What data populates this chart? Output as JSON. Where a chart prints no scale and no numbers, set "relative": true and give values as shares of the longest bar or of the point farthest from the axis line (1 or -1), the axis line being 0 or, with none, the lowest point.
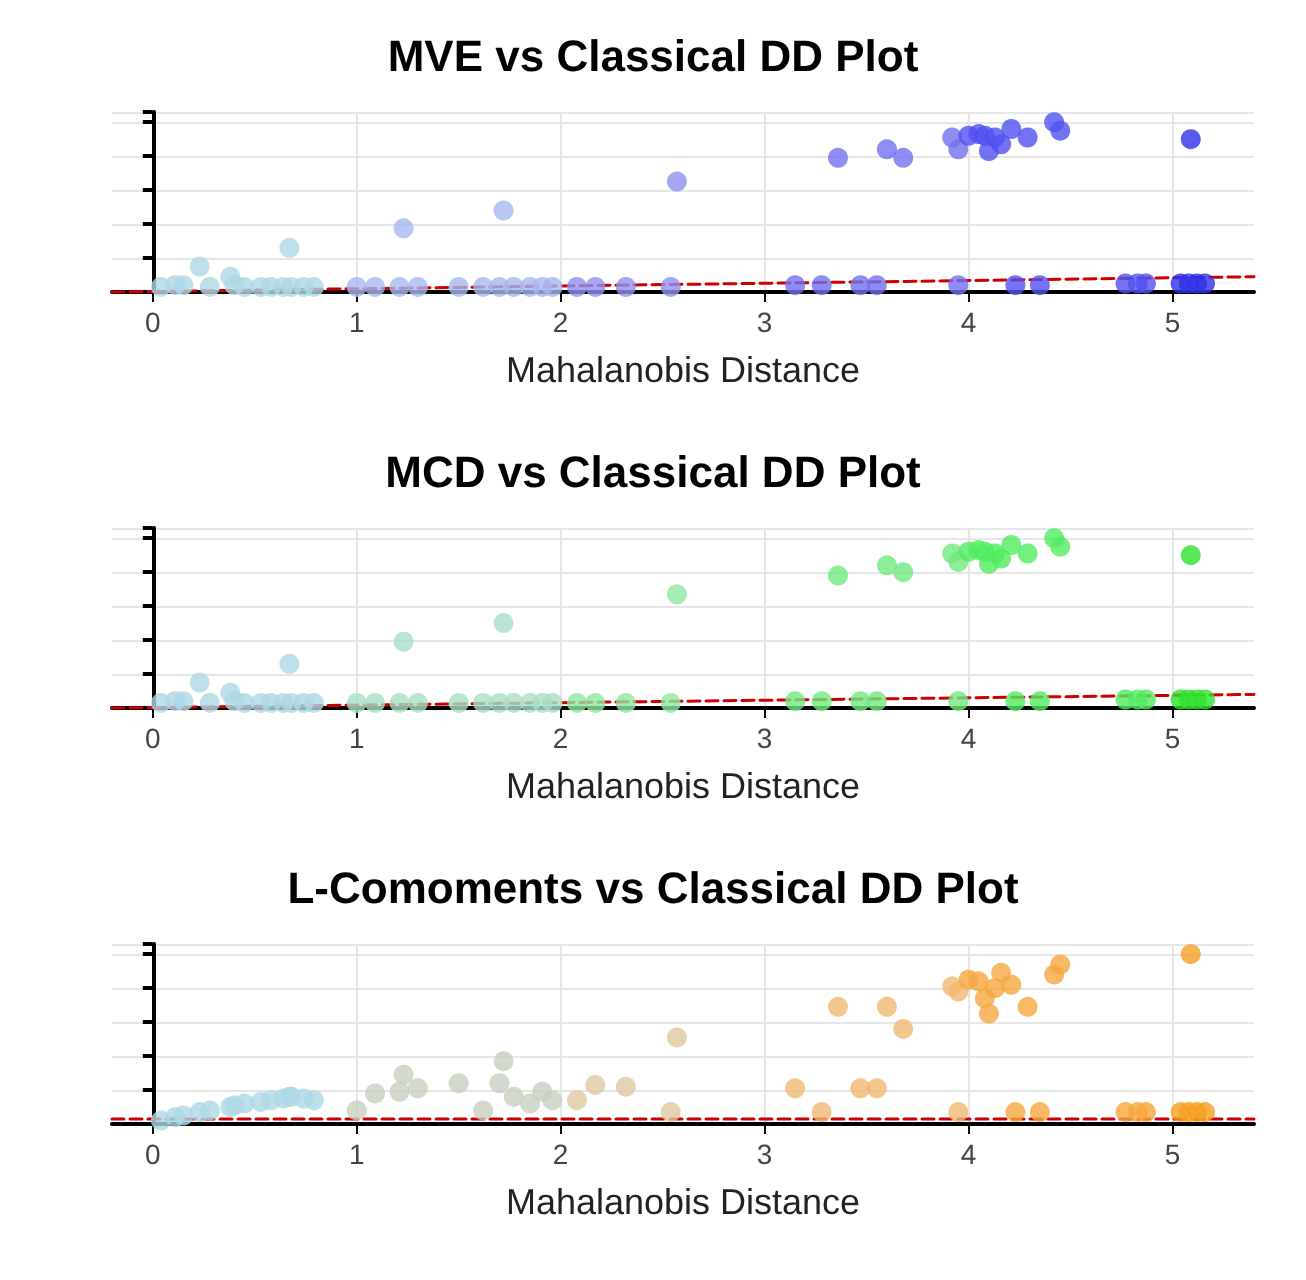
{
  "chart_data": [
    {
      "type": "scatter",
      "title": "MVE vs Classical DD Plot",
      "xlabel": "Mahalanobis Distance",
      "relative": true,
      "xlim": [
        -0.2,
        5.4
      ],
      "xticks": [
        0,
        1,
        2,
        3,
        4,
        5
      ],
      "grid": true,
      "tick_labels": "x",
      "series": [
        {
          "marker": "circle",
          "x": [
            0.04,
            0.11,
            0.15,
            0.23,
            0.28,
            0.38,
            0.4,
            0.45,
            0.53,
            0.58,
            0.64,
            0.67,
            0.68,
            0.74,
            0.79,
            1.0,
            1.09,
            1.21,
            1.23,
            1.3,
            1.5,
            1.62,
            1.7,
            1.72,
            1.77,
            1.85,
            1.91,
            1.96,
            2.08,
            2.17,
            2.32,
            2.54,
            2.57,
            3.15,
            3.28,
            3.36,
            3.47,
            3.55,
            3.6,
            3.68,
            3.92,
            3.95,
            3.95,
            4.0,
            4.05,
            4.08,
            4.1,
            4.13,
            4.16,
            4.21,
            4.23,
            4.29,
            4.35,
            4.42,
            4.45,
            4.77,
            4.83,
            4.87,
            5.04,
            5.08,
            5.09,
            5.12,
            5.16
          ],
          "values": [
            0.03,
            0.04,
            0.04,
            0.15,
            0.03,
            0.09,
            0.04,
            0.03,
            0.03,
            0.03,
            0.03,
            0.26,
            0.03,
            0.03,
            0.03,
            0.03,
            0.03,
            0.03,
            0.375,
            0.03,
            0.03,
            0.03,
            0.03,
            0.48,
            0.03,
            0.03,
            0.03,
            0.03,
            0.03,
            0.03,
            0.03,
            0.03,
            0.65,
            0.04,
            0.04,
            0.79,
            0.04,
            0.04,
            0.84,
            0.79,
            0.91,
            0.84,
            0.04,
            0.92,
            0.93,
            0.92,
            0.83,
            0.91,
            0.87,
            0.96,
            0.04,
            0.91,
            0.04,
            1.0,
            0.95,
            0.05,
            0.05,
            0.05,
            0.05,
            0.05,
            0.9,
            0.05,
            0.05
          ],
          "colors": [
            "#add8e6",
            "#add8e6",
            "#add8e6",
            "#add8e6",
            "#add8e6",
            "#add8e6",
            "#add8e6",
            "#add8e6",
            "#add8e6",
            "#add8e6",
            "#add8e6",
            "#add8e6",
            "#add8e6",
            "#add8e6",
            "#add8e6",
            "#a5b8f0",
            "#a5b8f0",
            "#a5b8f0",
            "#a5b8f0",
            "#a5b8f0",
            "#a5b8f0",
            "#a5b8f0",
            "#a5b8f0",
            "#a5b8f0",
            "#a5b8f0",
            "#a5b8f0",
            "#a5b8f0",
            "#a5b8f0",
            "#9090f0",
            "#9090f0",
            "#9090f0",
            "#9090f0",
            "#9090f0",
            "#7070f0",
            "#7070f0",
            "#7070f0",
            "#7070f0",
            "#7070f0",
            "#7070f0",
            "#7070f0",
            "#7070f0",
            "#7070f0",
            "#7070f0",
            "#5050f0",
            "#5050f0",
            "#5050f0",
            "#5050f0",
            "#5050f0",
            "#5050f0",
            "#5050f0",
            "#5050f0",
            "#5050f0",
            "#5050f0",
            "#5050f0",
            "#5050f0",
            "#5050f0",
            "#5050f0",
            "#5050f0",
            "#3030e8",
            "#3030e8",
            "#3030e8",
            "#3030e8",
            "#3030e8"
          ]
        },
        {
          "type": "line",
          "marker": "none",
          "line_style": "dashed",
          "color": "#cc0000",
          "x": [
            -0.2,
            5.4
          ],
          "values": [
            0,
            0.09
          ]
        }
      ]
    },
    {
      "type": "scatter",
      "title": "MCD vs Classical DD Plot",
      "xlabel": "Mahalanobis Distance",
      "relative": true,
      "xlim": [
        -0.2,
        5.4
      ],
      "xticks": [
        0,
        1,
        2,
        3,
        4,
        5
      ],
      "grid": true,
      "tick_labels": "x",
      "series": [
        {
          "marker": "circle",
          "x": [
            0.04,
            0.11,
            0.15,
            0.23,
            0.28,
            0.38,
            0.4,
            0.45,
            0.53,
            0.58,
            0.64,
            0.67,
            0.68,
            0.74,
            0.79,
            1.0,
            1.09,
            1.21,
            1.23,
            1.3,
            1.5,
            1.62,
            1.7,
            1.72,
            1.77,
            1.85,
            1.91,
            1.96,
            2.08,
            2.17,
            2.32,
            2.54,
            2.57,
            3.15,
            3.28,
            3.36,
            3.47,
            3.55,
            3.6,
            3.68,
            3.92,
            3.95,
            3.95,
            4.0,
            4.05,
            4.08,
            4.1,
            4.13,
            4.16,
            4.21,
            4.23,
            4.29,
            4.35,
            4.42,
            4.45,
            4.77,
            4.83,
            4.87,
            5.04,
            5.08,
            5.09,
            5.12,
            5.16
          ],
          "values": [
            0.03,
            0.04,
            0.04,
            0.15,
            0.03,
            0.09,
            0.04,
            0.03,
            0.03,
            0.03,
            0.03,
            0.26,
            0.03,
            0.03,
            0.03,
            0.03,
            0.03,
            0.03,
            0.39,
            0.03,
            0.03,
            0.03,
            0.03,
            0.5,
            0.03,
            0.03,
            0.03,
            0.03,
            0.03,
            0.03,
            0.03,
            0.03,
            0.67,
            0.04,
            0.04,
            0.78,
            0.04,
            0.04,
            0.84,
            0.8,
            0.91,
            0.86,
            0.04,
            0.92,
            0.93,
            0.92,
            0.85,
            0.91,
            0.88,
            0.96,
            0.04,
            0.91,
            0.04,
            1.0,
            0.95,
            0.05,
            0.05,
            0.05,
            0.05,
            0.05,
            0.9,
            0.05,
            0.05
          ],
          "colors": [
            "#add8e6",
            "#add8e6",
            "#add8e6",
            "#add8e6",
            "#add8e6",
            "#add8e6",
            "#add8e6",
            "#add8e6",
            "#add8e6",
            "#add8e6",
            "#add8e6",
            "#add8e6",
            "#add8e6",
            "#add8e6",
            "#add8e6",
            "#a8e0c8",
            "#a8e0c8",
            "#a8e0c8",
            "#a8e0c8",
            "#a8e0c8",
            "#a8e0c8",
            "#a8e0c8",
            "#a8e0c8",
            "#a8e0c8",
            "#a8e0c8",
            "#a8e0c8",
            "#a8e0c8",
            "#a8e0c8",
            "#90e8a0",
            "#90e8a0",
            "#90e8a0",
            "#90e8a0",
            "#90e8a0",
            "#70ea80",
            "#70ea80",
            "#70ea80",
            "#70ea80",
            "#70ea80",
            "#70ea80",
            "#70ea80",
            "#70ea80",
            "#70ea80",
            "#70ea80",
            "#50ec60",
            "#50ec60",
            "#50ec60",
            "#50ec60",
            "#50ec60",
            "#50ec60",
            "#50ec60",
            "#50ec60",
            "#50ec60",
            "#50ec60",
            "#50ec60",
            "#50ec60",
            "#50ec60",
            "#50ec60",
            "#50ec60",
            "#30e030",
            "#30e030",
            "#30e030",
            "#30e030",
            "#30e030"
          ]
        },
        {
          "type": "line",
          "marker": "none",
          "line_style": "dashed",
          "color": "#cc0000",
          "x": [
            -0.2,
            5.4
          ],
          "values": [
            0,
            0.08
          ]
        }
      ]
    },
    {
      "type": "scatter",
      "title": "L-Comoments vs Classical DD Plot",
      "xlabel": "Mahalanobis Distance",
      "relative": true,
      "xlim": [
        -0.2,
        5.4
      ],
      "xticks": [
        0,
        1,
        2,
        3,
        4,
        5
      ],
      "grid": true,
      "tick_labels": "x",
      "series": [
        {
          "marker": "circle",
          "x": [
            0.04,
            0.11,
            0.15,
            0.23,
            0.28,
            0.38,
            0.4,
            0.45,
            0.53,
            0.58,
            0.64,
            0.67,
            0.68,
            0.74,
            0.79,
            1.0,
            1.09,
            1.21,
            1.23,
            1.3,
            1.5,
            1.62,
            1.7,
            1.72,
            1.77,
            1.85,
            1.91,
            1.96,
            2.08,
            2.17,
            2.32,
            2.54,
            2.57,
            3.15,
            3.28,
            3.36,
            3.47,
            3.55,
            3.6,
            3.68,
            3.92,
            3.95,
            3.95,
            4.0,
            4.05,
            4.08,
            4.1,
            4.13,
            4.16,
            4.21,
            4.23,
            4.29,
            4.35,
            4.42,
            4.45,
            4.77,
            4.83,
            4.87,
            5.04,
            5.08,
            5.09,
            5.12,
            5.16
          ],
          "values": [
            0.02,
            0.04,
            0.05,
            0.07,
            0.08,
            0.1,
            0.11,
            0.12,
            0.13,
            0.14,
            0.15,
            0.16,
            0.16,
            0.15,
            0.14,
            0.08,
            0.18,
            0.19,
            0.29,
            0.21,
            0.24,
            0.08,
            0.24,
            0.37,
            0.16,
            0.12,
            0.19,
            0.14,
            0.14,
            0.23,
            0.22,
            0.07,
            0.51,
            0.21,
            0.07,
            0.69,
            0.21,
            0.21,
            0.69,
            0.56,
            0.81,
            0.78,
            0.07,
            0.85,
            0.84,
            0.74,
            0.65,
            0.8,
            0.89,
            0.82,
            0.07,
            0.69,
            0.07,
            0.88,
            0.94,
            0.07,
            0.07,
            0.07,
            0.07,
            0.07,
            1.0,
            0.07,
            0.07
          ],
          "colors": [
            "#add8e6",
            "#add8e6",
            "#add8e6",
            "#add8e6",
            "#add8e6",
            "#add8e6",
            "#add8e6",
            "#add8e6",
            "#add8e6",
            "#add8e6",
            "#add8e6",
            "#add8e6",
            "#add8e6",
            "#add8e6",
            "#add8e6",
            "#c8d0c0",
            "#c8d0c0",
            "#c8d0c0",
            "#c8d0c0",
            "#c8d0c0",
            "#c8d0c0",
            "#c8d0c0",
            "#c8d0c0",
            "#c8d0c0",
            "#c8d0c0",
            "#c8d0c0",
            "#c8d0c0",
            "#c8d0c0",
            "#e0c8a0",
            "#e0c8a0",
            "#e0c8a0",
            "#e0c8a0",
            "#e0c8a0",
            "#f0b870",
            "#f0b870",
            "#f0b870",
            "#f0b870",
            "#f0b870",
            "#f0b870",
            "#f0b870",
            "#f0b870",
            "#f0b870",
            "#f0b870",
            "#f5a840",
            "#f5a840",
            "#f5a840",
            "#f5a840",
            "#f5a840",
            "#f5a840",
            "#f5a840",
            "#f5a840",
            "#f5a840",
            "#f5a840",
            "#f5a840",
            "#f5a840",
            "#f5a840",
            "#f5a840",
            "#f5a840",
            "#f5a020",
            "#f5a020",
            "#f5a020",
            "#f5a020",
            "#f5a020"
          ]
        },
        {
          "type": "line",
          "marker": "none",
          "line_style": "dashed",
          "color": "#cc0000",
          "x": [
            -0.2,
            5.4
          ],
          "values": [
            0.03,
            0.03
          ]
        }
      ]
    }
  ]
}
